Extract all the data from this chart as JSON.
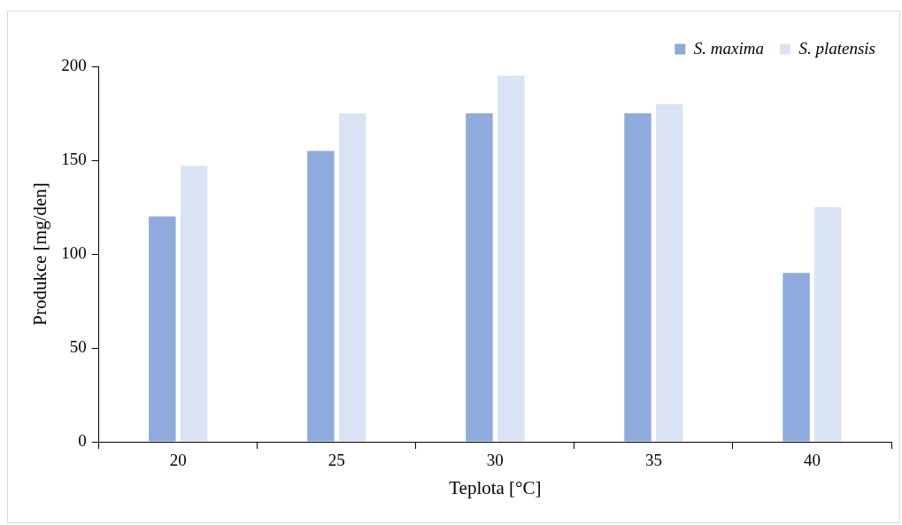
{
  "chart_data": {
    "type": "bar",
    "xlabel": "Teplota [°C]",
    "ylabel": "Produkce [mg/den]",
    "categories": [
      "20",
      "25",
      "30",
      "35",
      "40"
    ],
    "series": [
      {
        "name": "S. maxima",
        "color": "#8faadc",
        "values": [
          120,
          155,
          175,
          175,
          90
        ]
      },
      {
        "name": "S. platensis",
        "color": "#dae3f3",
        "values": [
          147,
          175,
          195,
          180,
          125
        ]
      }
    ],
    "ylim": [
      0,
      200
    ],
    "yticks": [
      0,
      50,
      100,
      150,
      200
    ],
    "grid": false,
    "legend": "top right"
  }
}
